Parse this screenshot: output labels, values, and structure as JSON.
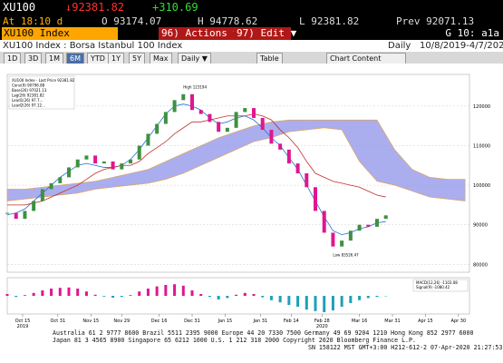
{
  "header": {
    "ticker": "XU100",
    "last": "↓92381.82",
    "change": "+310.69",
    "time": "At 18:10 d",
    "open": "O 93174.07",
    "high": "H 94778.62",
    "low": "L 92381.82",
    "prev": "Prev 92071.13",
    "security": "XU100 Index",
    "actions": "96) Actions ▼",
    "edit": "97) Edit ▼",
    "page": "G 10: a1a",
    "description": "XU100 Index : Borsa Istanbul 100 Index",
    "frequency": "Daily",
    "range": "10/8/2019-4/7/2020"
  },
  "toolbar": {
    "periods": [
      "1D",
      "3D",
      "1M",
      "6M",
      "YTD",
      "1Y",
      "5Y",
      "Max"
    ],
    "interval": "Daily ▼",
    "table": "Table",
    "content": "Chart Content"
  },
  "chart_data": {
    "type": "candlestick-ichimoku",
    "legend": [
      "XU100 Index - Last Price 92381.82",
      "Conv(9) 90796.88",
      "Base(26) 97021.13",
      "Lag(26) 92381.82",
      "Lead1(26) 97.7...",
      "Lead2(26) 97.12..."
    ],
    "annotations": [
      "High 123194",
      "Low 83526.47"
    ],
    "x": [
      0,
      4,
      8,
      12,
      16,
      20,
      24,
      28,
      32,
      36,
      40,
      44,
      48,
      52,
      56,
      60,
      64,
      68,
      72,
      76,
      80,
      84,
      88,
      92,
      96,
      100,
      104,
      108,
      112,
      116,
      120,
      124,
      128,
      132,
      136,
      140,
      144,
      148,
      152,
      156,
      160,
      164,
      168,
      172
    ],
    "xlim": [
      0,
      210
    ],
    "xticks": [
      {
        "value": 7,
        "label": "Oct 15"
      },
      {
        "value": 23,
        "label": "Oct 31"
      },
      {
        "value": 38,
        "label": "Nov 15"
      },
      {
        "value": 52,
        "label": "Nov 29"
      },
      {
        "value": 69,
        "label": "Dec 16"
      },
      {
        "value": 84,
        "label": "Dec 31"
      },
      {
        "value": 99,
        "label": "Jan 15"
      },
      {
        "value": 115,
        "label": "Jan 31"
      },
      {
        "value": 129,
        "label": "Feb 14"
      },
      {
        "value": 143,
        "label": "Feb 28"
      },
      {
        "value": 160,
        "label": "Mar 16"
      },
      {
        "value": 175,
        "label": "Mar 31"
      },
      {
        "value": 190,
        "label": "Apr 15"
      },
      {
        "value": 205,
        "label": "Apr 30"
      }
    ],
    "years": [
      {
        "value": 7,
        "label": "2019"
      },
      {
        "value": 143,
        "label": "2020"
      }
    ],
    "ylim": [
      78000,
      128000
    ],
    "yticks": [
      {
        "value": 80000,
        "label": "80000"
      },
      {
        "value": 90000,
        "label": "90000"
      },
      {
        "value": 100000,
        "label": "100000"
      },
      {
        "value": 110000,
        "label": "110000"
      },
      {
        "value": 120000,
        "label": "120000"
      }
    ],
    "up_color": "#3d9140",
    "down_color": "#e0168f",
    "series": [
      {
        "name": "XU100 Index - Last Price",
        "values": [
          93000,
          91500,
          93500,
          96000,
          99000,
          100500,
          102000,
          104500,
          106500,
          107500,
          105500,
          106000,
          104000,
          105500,
          106500,
          110000,
          113000,
          115500,
          118500,
          121500,
          123000,
          119000,
          118000,
          116000,
          113500,
          114500,
          118500,
          119500,
          117000,
          114000,
          110500,
          109000,
          105500,
          103000,
          99500,
          93500,
          88000,
          84500,
          86000,
          88500,
          90000,
          89500,
          91500,
          92381.82
        ]
      },
      {
        "name": "Conv(9)",
        "color": "#1f6fd0",
        "values": [
          92500,
          93000,
          94000,
          96000,
          98000,
          100000,
          102000,
          103500,
          105000,
          105500,
          105000,
          104500,
          104500,
          105000,
          106500,
          109000,
          112000,
          115000,
          118000,
          120000,
          120500,
          120000,
          119000,
          117000,
          115500,
          116000,
          117000,
          117500,
          116500,
          114500,
          112000,
          110000,
          107000,
          104000,
          100000,
          96000,
          92000,
          88500,
          87500,
          88000,
          89000,
          89500,
          90500,
          90796.88
        ]
      },
      {
        "name": "Base(26)",
        "color": "#c0302a",
        "values": [
          95000,
          95000,
          95000,
          95500,
          96000,
          97000,
          98000,
          99000,
          100000,
          101500,
          103000,
          104000,
          104500,
          105000,
          105000,
          106000,
          108000,
          109500,
          111000,
          113000,
          114500,
          116000,
          116000,
          116500,
          117000,
          117500,
          117500,
          117500,
          118000,
          117500,
          116500,
          114000,
          112000,
          109500,
          106000,
          103000,
          102000,
          101000,
          100500,
          100000,
          99500,
          98500,
          97500,
          97021.13
        ]
      }
    ],
    "cloud": {
      "color": "#8f93e8",
      "x": [
        0,
        8,
        16,
        24,
        32,
        40,
        48,
        56,
        64,
        72,
        80,
        88,
        96,
        104,
        112,
        120,
        128,
        136,
        144,
        152,
        160,
        168,
        176,
        184,
        192,
        200,
        208
      ],
      "upper": [
        99000,
        99000,
        99500,
        100000,
        100500,
        101000,
        102000,
        103000,
        104000,
        106000,
        108000,
        110000,
        112000,
        113500,
        115000,
        116000,
        116500,
        116500,
        116500,
        116500,
        116500,
        116500,
        109000,
        104000,
        102000,
        101500,
        101500
      ],
      "lower": [
        96000,
        96500,
        97000,
        97500,
        98000,
        99000,
        99500,
        100000,
        100500,
        101500,
        103000,
        105000,
        107000,
        109000,
        111000,
        112000,
        113500,
        114000,
        114500,
        114000,
        106000,
        101000,
        100000,
        98500,
        97000,
        96500,
        96000
      ]
    },
    "oscillator": {
      "legend": [
        "MACD(12,26) -1103.08",
        "Signal(9) -1080.42"
      ],
      "pos_color": "#e0168f",
      "neg_color": "#1fa0b8",
      "ylim": [
        -5000,
        5000
      ],
      "values": [
        500,
        -300,
        200,
        800,
        1500,
        2000,
        2200,
        2300,
        2000,
        1200,
        300,
        -200,
        -500,
        -300,
        200,
        1200,
        2000,
        2600,
        3000,
        3200,
        2800,
        1500,
        500,
        -300,
        -1000,
        -600,
        300,
        800,
        500,
        -400,
        -1200,
        -1800,
        -2500,
        -3000,
        -3800,
        -4200,
        -4500,
        -4000,
        -3000,
        -2000,
        -1200,
        -600,
        -300,
        -100
      ]
    }
  },
  "footer": [
    "Australia 61 2 9777 8600 Brazil 5511 2395 9000 Europe 44 20 7330 7500 Germany 49 69 9204 1210 Hong Kong 852 2977 6000",
    "Japan 81 3 4565 8900        Singapore 65 6212 1000       U.S. 1 212 318 2000      Copyright 2020 Bloomberg Finance L.P.",
    "SN 158122 MST GMT+3:00 H212-612-2 07-Apr-2020 21:27:53"
  ]
}
